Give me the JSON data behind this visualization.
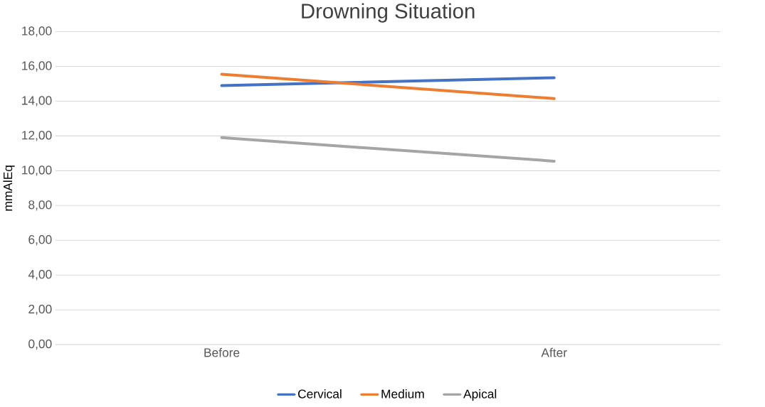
{
  "chart_data": {
    "type": "line",
    "title": "Drowning Situation",
    "ylabel": "mmAlEq",
    "categories": [
      "Before",
      "After"
    ],
    "series": [
      {
        "name": "Cervical",
        "color": "#4472c4",
        "values": [
          14.9,
          15.35
        ]
      },
      {
        "name": "Medium",
        "color": "#ed7d31",
        "values": [
          15.55,
          14.15
        ]
      },
      {
        "name": "Apical",
        "color": "#a5a5a5",
        "values": [
          11.9,
          10.55
        ]
      }
    ],
    "ylim": [
      0,
      18
    ],
    "yticks": [
      {
        "value": 0,
        "label": "0,00"
      },
      {
        "value": 2,
        "label": "2,00"
      },
      {
        "value": 4,
        "label": "4,00"
      },
      {
        "value": 6,
        "label": "6,00"
      },
      {
        "value": 8,
        "label": "8,00"
      },
      {
        "value": 10,
        "label": "10,00"
      },
      {
        "value": 12,
        "label": "12,00"
      },
      {
        "value": 14,
        "label": "14,00"
      },
      {
        "value": 16,
        "label": "16,00"
      },
      {
        "value": 18,
        "label": "18,00"
      }
    ],
    "grid": "y",
    "legend": "bottom",
    "marker": "none",
    "line_style": "solid"
  }
}
